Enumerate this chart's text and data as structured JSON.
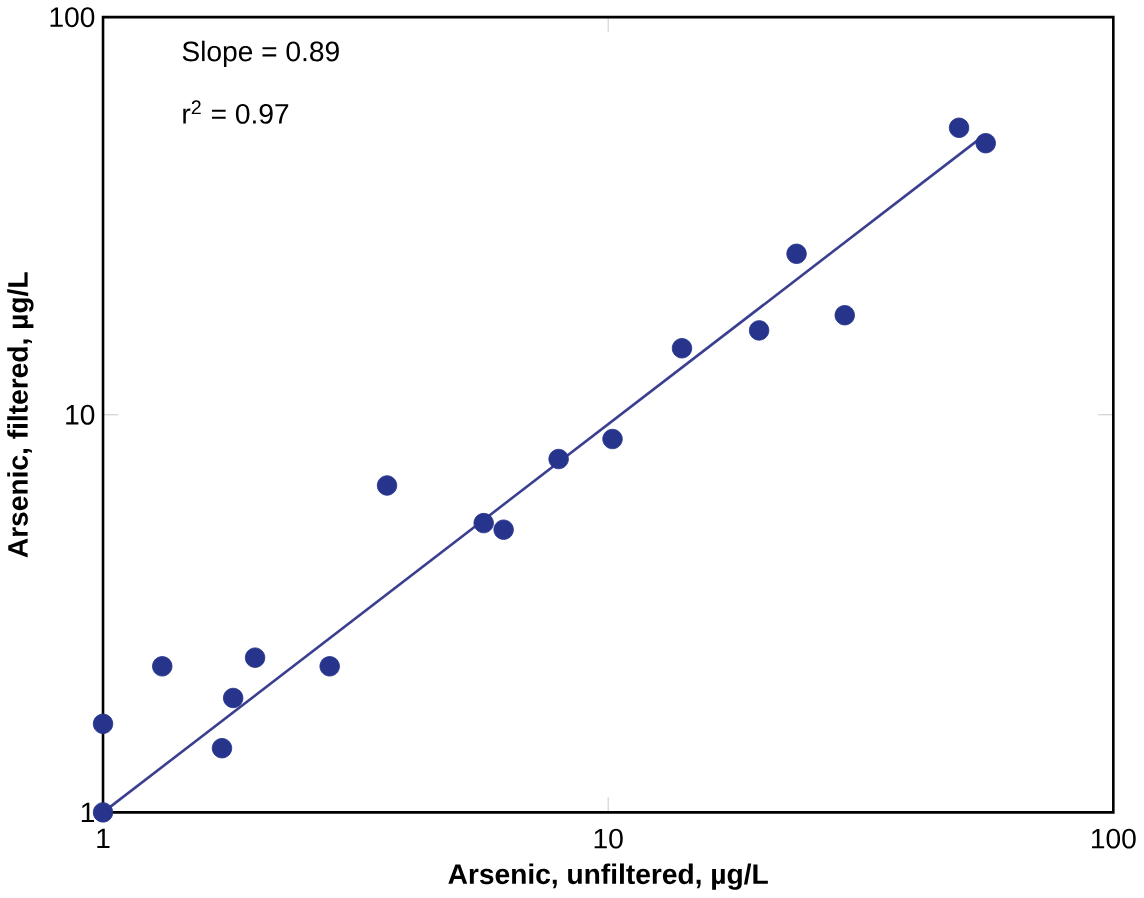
{
  "chart_data": {
    "type": "scatter",
    "log": "xy",
    "xlabel": "Arsenic, unfiltered, µg/L",
    "ylabel": "Arsenic, filtered, µg/L",
    "xlim": [
      1,
      100
    ],
    "ylim": [
      1,
      100
    ],
    "xticks": [
      1,
      10,
      100
    ],
    "yticks": [
      1,
      10,
      100
    ],
    "grid": false,
    "annotations": [
      "Slope = 0.89",
      "r$^{2}$ = 0.97"
    ],
    "series": [
      {
        "marker": "circle",
        "color": "#27348b",
        "x": [
          1,
          1,
          1.31,
          1.72,
          1.81,
          2.0,
          2.81,
          3.65,
          5.67,
          6.21,
          7.98,
          10.2,
          14.0,
          19.9,
          23.6,
          29.4,
          49.5,
          55.9
        ],
        "values": [
          1.67,
          1,
          2.33,
          1.45,
          1.94,
          2.45,
          2.33,
          6.64,
          5.34,
          5.14,
          7.74,
          8.69,
          14.7,
          16.3,
          25.4,
          17.8,
          52.7,
          48.2
        ]
      },
      {
        "type": "line",
        "marker": "none",
        "color": "#3a3f8f",
        "x": [
          1,
          55
        ],
        "values": [
          1,
          50
        ]
      }
    ]
  }
}
